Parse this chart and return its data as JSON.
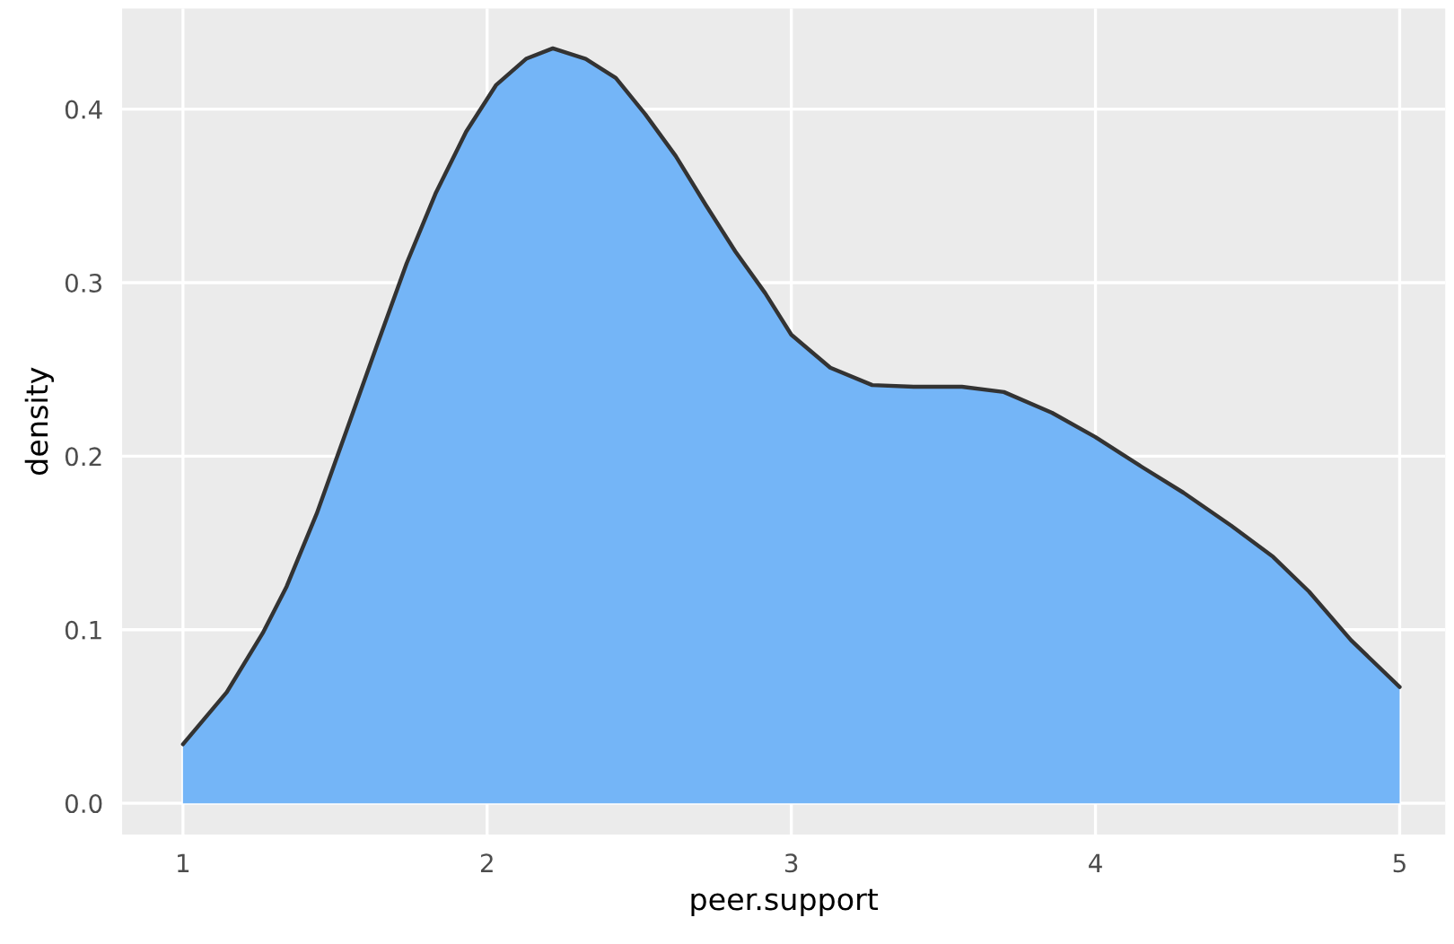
{
  "chart_data": {
    "type": "area",
    "xlabel": "peer.support",
    "ylabel": "density",
    "x": [
      1.0,
      1.144,
      1.262,
      1.341,
      1.44,
      1.538,
      1.636,
      1.735,
      1.832,
      1.931,
      2.03,
      2.128,
      2.216,
      2.324,
      2.423,
      2.52,
      2.62,
      2.718,
      2.816,
      2.914,
      3.0,
      3.128,
      3.266,
      3.404,
      3.561,
      3.699,
      3.857,
      4.0,
      4.151,
      4.289,
      4.446,
      4.584,
      4.702,
      4.84,
      5.0
    ],
    "series": [
      {
        "color": "#74b5f7",
        "values": [
          0.034,
          0.064,
          0.098,
          0.125,
          0.167,
          0.215,
          0.263,
          0.311,
          0.352,
          0.387,
          0.414,
          0.429,
          0.435,
          0.429,
          0.418,
          0.397,
          0.373,
          0.345,
          0.318,
          0.294,
          0.27,
          0.251,
          0.241,
          0.24,
          0.24,
          0.237,
          0.225,
          0.211,
          0.194,
          0.179,
          0.16,
          0.142,
          0.122,
          0.094,
          0.067
        ]
      }
    ],
    "xlim": [
      0.8,
      5.15
    ],
    "ylim": [
      -0.018,
      0.458
    ],
    "xticks": [
      1,
      2,
      3,
      4,
      5
    ],
    "yticks": [
      {
        "value": 0,
        "label": "0.0"
      },
      0.1,
      0.2,
      0.3,
      0.4
    ],
    "grid": true
  }
}
